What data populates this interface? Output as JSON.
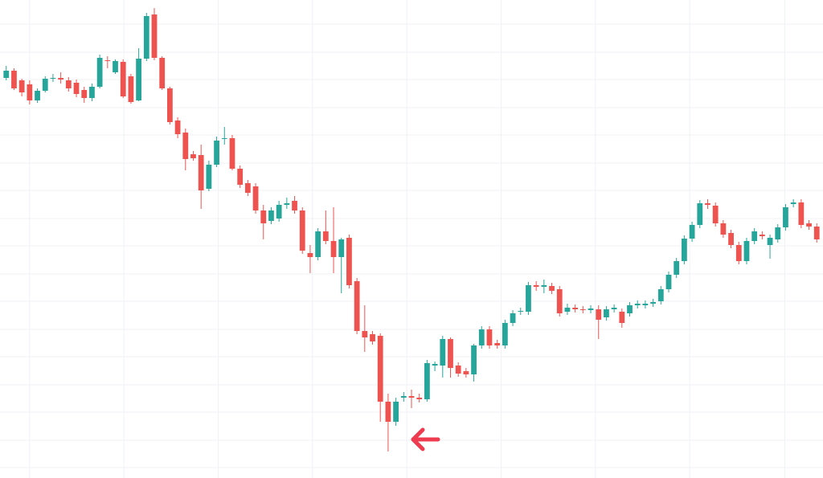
{
  "chart_data": {
    "type": "candlestick",
    "up_color": "#26a69a",
    "down_color": "#ef5350",
    "grid": true,
    "xlim": [
      -0.8,
      104.8
    ],
    "xticks": [
      3,
      15.1,
      27.2,
      39.3,
      51.4,
      63.5,
      75.6,
      87.7,
      99.9
    ],
    "ylim": [
      0,
      595
    ],
    "yticks": [
      565,
      530,
      496,
      461,
      427,
      392,
      358,
      323,
      289,
      254,
      220,
      185,
      151,
      116,
      82,
      47,
      13
    ],
    "open": [
      498,
      507,
      495,
      490,
      470,
      482,
      497,
      498,
      495,
      492,
      483,
      473,
      487,
      520,
      505,
      518,
      500,
      470,
      522,
      577,
      523,
      485,
      445,
      430,
      403,
      402,
      360,
      390,
      422,
      423,
      385,
      367,
      363,
      333,
      320,
      323,
      340,
      345,
      333,
      280,
      275,
      307,
      295,
      275,
      299,
      245,
      183,
      179,
      177,
      95,
      70,
      100,
      102,
      100,
      98,
      140,
      140,
      173,
      140,
      133,
      129,
      165,
      185,
      168,
      165,
      193,
      207,
      207,
      240,
      238,
      239,
      235,
      207,
      212,
      210,
      209,
      210,
      200,
      210,
      207,
      205,
      215,
      215,
      217,
      220,
      235,
      253,
      270,
      298,
      315,
      342,
      339,
      317,
      305,
      290,
      270,
      295,
      303,
      290,
      297,
      312,
      341,
      343,
      317,
      313
    ],
    "high": [
      513,
      510,
      497,
      495,
      485,
      500,
      503,
      505,
      499,
      496,
      487,
      491,
      527,
      525,
      521,
      521,
      503,
      535,
      579,
      585,
      525,
      487,
      449,
      435,
      407,
      415,
      395,
      425,
      437,
      427,
      389,
      371,
      367,
      340,
      337,
      345,
      349,
      351,
      337,
      290,
      311,
      333,
      337,
      299,
      303,
      249,
      215,
      183,
      180,
      105,
      100,
      107,
      110,
      105,
      147,
      145,
      177,
      175,
      144,
      137,
      167,
      189,
      189,
      172,
      197,
      209,
      212,
      244,
      245,
      247,
      243,
      239,
      217,
      216,
      214,
      215,
      215,
      214,
      216,
      211,
      219,
      221,
      221,
      223,
      239,
      257,
      274,
      302,
      319,
      346,
      347,
      343,
      321,
      309,
      294,
      299,
      311,
      307,
      303,
      316,
      341,
      347,
      347,
      321,
      317
    ],
    "low": [
      495,
      483,
      475,
      465,
      467,
      480,
      493,
      491,
      481,
      474,
      467,
      469,
      485,
      510,
      503,
      473,
      466,
      469,
      519,
      520,
      483,
      440,
      423,
      383,
      395,
      335,
      357,
      387,
      415,
      383,
      361,
      351,
      329,
      297,
      316,
      319,
      335,
      329,
      279,
      255,
      271,
      291,
      255,
      230,
      236,
      179,
      157,
      166,
      70,
      33,
      65,
      95,
      87,
      94,
      95,
      133,
      125,
      125,
      126,
      125,
      120,
      161,
      161,
      161,
      161,
      189,
      203,
      203,
      233,
      230,
      229,
      201,
      203,
      206,
      205,
      205,
      173,
      196,
      206,
      187,
      201,
      211,
      211,
      213,
      216,
      231,
      249,
      266,
      294,
      311,
      335,
      313,
      299,
      286,
      266,
      266,
      291,
      297,
      273,
      293,
      308,
      337,
      311,
      309,
      293
    ],
    "close": [
      507,
      485,
      480,
      470,
      482,
      497,
      498,
      496,
      485,
      478,
      473,
      487,
      523,
      519,
      519,
      475,
      468,
      522,
      575,
      523,
      485,
      443,
      428,
      397,
      398,
      358,
      390,
      420,
      423,
      385,
      365,
      355,
      333,
      317,
      333,
      340,
      342,
      333,
      283,
      275,
      307,
      295,
      275,
      297,
      240,
      183,
      175,
      170,
      95,
      70,
      95,
      102,
      100,
      98,
      143,
      142,
      173,
      137,
      130,
      129,
      165,
      185,
      165,
      165,
      193,
      205,
      208,
      240,
      238,
      240,
      233,
      205,
      212,
      210,
      209,
      211,
      197,
      210,
      212,
      193,
      215,
      217,
      217,
      219,
      235,
      253,
      270,
      298,
      315,
      342,
      340,
      317,
      303,
      290,
      270,
      295,
      307,
      301,
      299,
      312,
      337,
      343,
      315,
      313,
      297
    ]
  }
}
